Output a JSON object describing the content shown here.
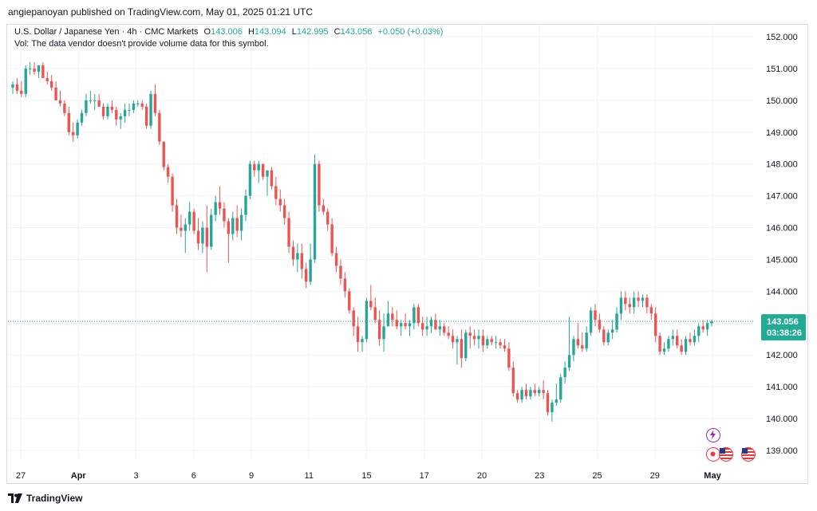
{
  "header": {
    "publish_line": "angiepanoyan published on TradingView.com, May 01, 2025 01:21 UTC"
  },
  "legend": {
    "symbol": "U.S. Dollar / Japanese Yen · 4h · CMC Markets",
    "o_label": "O",
    "o_value": "143.006",
    "h_label": "H",
    "h_value": "143.094",
    "l_label": "L",
    "l_value": "142.995",
    "c_label": "C",
    "c_value": "143.056",
    "change": "+0.050 (+0.03%)",
    "volume_note": "Vol: The data vendor doesn't provide volume data for this symbol."
  },
  "footer": {
    "brand": "TradingView"
  },
  "colors": {
    "up": "#26a69a",
    "down": "#ef5350",
    "grid": "#f0f3fa",
    "last_price": "#22ab94"
  },
  "icons": [
    "lightning-icon",
    "red-dot-event-icon",
    "us-flag-event-icon",
    "us-flag-event-icon"
  ],
  "chart_data": {
    "type": "candlestick",
    "title": "U.S. Dollar / Japanese Yen · 4h · CMC Markets",
    "ylim": [
      138.7,
      152.4
    ],
    "y_ticks": [
      "152.000",
      "151.000",
      "150.000",
      "149.000",
      "148.000",
      "147.000",
      "146.000",
      "145.000",
      "144.000",
      "143.000",
      "142.000",
      "141.000",
      "140.000",
      "139.000"
    ],
    "x_ticks": [
      "27",
      "Apr",
      "3",
      "6",
      "9",
      "11",
      "15",
      "17",
      "20",
      "23",
      "25",
      "29",
      "May"
    ],
    "last_price": {
      "value": 143.056,
      "label": "143.056",
      "countdown": "03:38:26"
    },
    "candles": [
      [
        150.4,
        150.6,
        150.2,
        150.5
      ],
      [
        150.5,
        150.7,
        150.2,
        150.3
      ],
      [
        150.3,
        150.6,
        150.1,
        150.2
      ],
      [
        150.2,
        151.1,
        150.1,
        151.0
      ],
      [
        151.0,
        151.2,
        150.8,
        151.0
      ],
      [
        151.0,
        151.2,
        150.8,
        150.9
      ],
      [
        150.9,
        151.1,
        150.7,
        151.1
      ],
      [
        151.1,
        151.2,
        150.7,
        150.7
      ],
      [
        150.7,
        150.9,
        150.5,
        150.6
      ],
      [
        150.6,
        150.8,
        150.3,
        150.4
      ],
      [
        150.4,
        150.6,
        150.0,
        150.0
      ],
      [
        150.0,
        150.3,
        149.8,
        149.9
      ],
      [
        149.9,
        150.0,
        149.5,
        149.6
      ],
      [
        149.6,
        149.8,
        148.9,
        149.0
      ],
      [
        149.0,
        149.3,
        148.7,
        148.9
      ],
      [
        148.9,
        149.4,
        148.8,
        149.3
      ],
      [
        149.3,
        149.7,
        149.2,
        149.6
      ],
      [
        149.6,
        150.2,
        149.5,
        150.0
      ],
      [
        150.0,
        150.3,
        149.9,
        150.0
      ],
      [
        150.0,
        150.2,
        149.7,
        150.0
      ],
      [
        150.0,
        150.2,
        149.8,
        149.8
      ],
      [
        149.8,
        149.9,
        149.4,
        149.5
      ],
      [
        149.5,
        149.9,
        149.4,
        149.8
      ],
      [
        149.8,
        150.0,
        149.6,
        149.7
      ],
      [
        149.7,
        149.8,
        149.2,
        149.4
      ],
      [
        149.4,
        149.6,
        149.1,
        149.5
      ],
      [
        149.5,
        149.9,
        149.3,
        149.7
      ],
      [
        149.7,
        149.9,
        149.5,
        149.7
      ],
      [
        149.7,
        150.0,
        149.6,
        149.9
      ],
      [
        149.9,
        150.0,
        149.8,
        149.9
      ],
      [
        149.9,
        150.0,
        149.7,
        149.8
      ],
      [
        149.8,
        149.9,
        149.1,
        149.2
      ],
      [
        149.2,
        150.3,
        149.1,
        150.2
      ],
      [
        150.2,
        150.5,
        149.5,
        149.6
      ],
      [
        149.6,
        149.7,
        148.6,
        148.7
      ],
      [
        148.7,
        148.7,
        147.8,
        147.9
      ],
      [
        147.9,
        148.0,
        147.4,
        147.6
      ],
      [
        147.6,
        147.7,
        146.5,
        146.7
      ],
      [
        146.7,
        146.9,
        145.8,
        146.0
      ],
      [
        146.0,
        146.4,
        145.7,
        145.9
      ],
      [
        145.9,
        146.3,
        145.2,
        146.1
      ],
      [
        146.1,
        146.8,
        145.9,
        146.5
      ],
      [
        146.5,
        146.6,
        145.8,
        145.9
      ],
      [
        145.9,
        146.3,
        145.3,
        145.5
      ],
      [
        145.5,
        146.2,
        145.2,
        146.0
      ],
      [
        146.0,
        146.7,
        144.6,
        145.4
      ],
      [
        145.4,
        146.6,
        145.3,
        146.4
      ],
      [
        146.4,
        147.0,
        146.2,
        146.8
      ],
      [
        146.8,
        147.3,
        146.4,
        146.6
      ],
      [
        146.6,
        146.8,
        146.0,
        146.2
      ],
      [
        146.2,
        146.3,
        144.9,
        145.8
      ],
      [
        145.8,
        146.5,
        145.6,
        146.3
      ],
      [
        146.3,
        146.7,
        145.7,
        145.9
      ],
      [
        145.9,
        146.6,
        145.6,
        146.4
      ],
      [
        146.4,
        147.2,
        146.2,
        147.0
      ],
      [
        147.0,
        148.1,
        146.9,
        148.0
      ],
      [
        148.0,
        148.1,
        147.6,
        147.8
      ],
      [
        147.8,
        148.1,
        147.4,
        148.0
      ],
      [
        148.0,
        148.0,
        147.5,
        147.6
      ],
      [
        147.6,
        147.8,
        147.0,
        147.8
      ],
      [
        147.8,
        147.9,
        147.2,
        147.3
      ],
      [
        147.3,
        147.6,
        146.7,
        146.9
      ],
      [
        146.9,
        147.2,
        146.5,
        146.7
      ],
      [
        146.7,
        146.9,
        146.1,
        146.3
      ],
      [
        146.3,
        146.5,
        145.2,
        145.4
      ],
      [
        145.4,
        145.6,
        144.8,
        145.0
      ],
      [
        145.0,
        145.5,
        144.6,
        145.2
      ],
      [
        145.2,
        145.5,
        144.4,
        144.7
      ],
      [
        144.7,
        144.9,
        144.1,
        144.3
      ],
      [
        144.3,
        145.5,
        144.2,
        145.0
      ],
      [
        145.0,
        148.3,
        144.9,
        148.0
      ],
      [
        148.0,
        148.1,
        146.5,
        146.7
      ],
      [
        146.7,
        146.9,
        146.4,
        146.5
      ],
      [
        146.5,
        146.6,
        145.9,
        146.1
      ],
      [
        146.1,
        146.3,
        145.1,
        145.2
      ],
      [
        145.2,
        145.4,
        144.6,
        144.8
      ],
      [
        144.8,
        145.0,
        144.2,
        144.4
      ],
      [
        144.4,
        144.6,
        143.8,
        144.0
      ],
      [
        144.0,
        144.1,
        143.3,
        143.4
      ],
      [
        143.4,
        143.5,
        142.6,
        142.9
      ],
      [
        142.9,
        143.2,
        142.1,
        142.4
      ],
      [
        142.4,
        142.6,
        142.1,
        142.5
      ],
      [
        142.5,
        143.8,
        142.4,
        143.7
      ],
      [
        143.7,
        144.2,
        143.4,
        143.5
      ],
      [
        143.5,
        143.8,
        143.0,
        143.1
      ],
      [
        143.1,
        143.4,
        142.3,
        142.5
      ],
      [
        142.5,
        143.3,
        142.1,
        142.9
      ],
      [
        142.9,
        143.7,
        142.9,
        143.3
      ],
      [
        143.3,
        143.5,
        142.9,
        143.1
      ],
      [
        143.1,
        143.4,
        142.8,
        142.9
      ],
      [
        142.9,
        143.1,
        142.6,
        143.0
      ],
      [
        143.0,
        143.3,
        142.8,
        142.9
      ],
      [
        142.9,
        143.1,
        142.6,
        143.0
      ],
      [
        143.0,
        143.6,
        142.8,
        143.5
      ],
      [
        143.5,
        143.6,
        142.9,
        143.0
      ],
      [
        143.0,
        143.2,
        142.6,
        142.8
      ],
      [
        142.8,
        143.2,
        142.6,
        142.9
      ],
      [
        142.9,
        143.2,
        142.7,
        143.1
      ],
      [
        143.1,
        143.3,
        142.8,
        142.8
      ],
      [
        142.8,
        143.1,
        142.6,
        142.9
      ],
      [
        142.9,
        143.0,
        142.6,
        142.7
      ],
      [
        142.7,
        142.9,
        142.5,
        142.6
      ],
      [
        142.6,
        142.8,
        142.2,
        142.4
      ],
      [
        142.4,
        142.6,
        141.7,
        142.5
      ],
      [
        142.5,
        142.8,
        141.6,
        141.9
      ],
      [
        141.9,
        142.8,
        141.8,
        142.7
      ],
      [
        142.7,
        142.9,
        142.2,
        142.6
      ],
      [
        142.6,
        142.8,
        142.3,
        142.5
      ],
      [
        142.5,
        142.8,
        142.2,
        142.6
      ],
      [
        142.6,
        142.8,
        142.1,
        142.3
      ],
      [
        142.3,
        142.6,
        142.2,
        142.5
      ],
      [
        142.5,
        142.6,
        142.3,
        142.4
      ],
      [
        142.4,
        142.6,
        142.2,
        142.4
      ],
      [
        142.4,
        142.5,
        142.2,
        142.3
      ],
      [
        142.3,
        142.5,
        142.1,
        142.2
      ],
      [
        142.2,
        142.4,
        141.5,
        141.6
      ],
      [
        141.6,
        141.8,
        140.7,
        140.8
      ],
      [
        140.8,
        140.9,
        140.5,
        140.6
      ],
      [
        140.6,
        141.0,
        140.5,
        140.9
      ],
      [
        140.9,
        141.1,
        140.6,
        140.7
      ],
      [
        140.7,
        141.0,
        140.6,
        140.9
      ],
      [
        140.9,
        141.1,
        140.7,
        140.8
      ],
      [
        140.8,
        141.0,
        140.7,
        140.9
      ],
      [
        140.9,
        141.2,
        140.6,
        140.8
      ],
      [
        140.8,
        140.9,
        140.1,
        140.2
      ],
      [
        140.2,
        140.6,
        139.9,
        140.5
      ],
      [
        140.5,
        141.1,
        140.4,
        140.6
      ],
      [
        140.6,
        141.4,
        140.5,
        141.3
      ],
      [
        141.3,
        141.8,
        141.1,
        141.6
      ],
      [
        141.6,
        143.2,
        141.5,
        142.0
      ],
      [
        142.0,
        142.6,
        141.8,
        142.5
      ],
      [
        142.5,
        143.0,
        142.2,
        142.3
      ],
      [
        142.3,
        142.7,
        142.1,
        142.2
      ],
      [
        142.2,
        142.9,
        142.1,
        142.7
      ],
      [
        142.7,
        143.5,
        142.6,
        143.4
      ],
      [
        143.4,
        143.6,
        142.9,
        143.1
      ],
      [
        143.1,
        143.3,
        142.7,
        142.8
      ],
      [
        142.8,
        142.9,
        142.3,
        142.4
      ],
      [
        142.4,
        142.8,
        142.3,
        142.7
      ],
      [
        142.7,
        143.1,
        142.5,
        142.8
      ],
      [
        142.8,
        143.5,
        142.7,
        143.3
      ],
      [
        143.3,
        144.0,
        143.1,
        143.8
      ],
      [
        143.8,
        144.0,
        143.4,
        143.6
      ],
      [
        143.6,
        143.8,
        143.3,
        143.5
      ],
      [
        143.5,
        144.0,
        143.3,
        143.8
      ],
      [
        143.8,
        144.0,
        143.5,
        143.7
      ],
      [
        143.7,
        143.9,
        143.5,
        143.8
      ],
      [
        143.8,
        143.9,
        143.3,
        143.5
      ],
      [
        143.5,
        143.6,
        143.1,
        143.3
      ],
      [
        143.3,
        143.5,
        142.4,
        142.6
      ],
      [
        142.6,
        142.7,
        142.0,
        142.1
      ],
      [
        142.1,
        142.4,
        142.0,
        142.2
      ],
      [
        142.2,
        142.6,
        142.1,
        142.5
      ],
      [
        142.5,
        142.8,
        142.3,
        142.6
      ],
      [
        142.6,
        142.8,
        142.2,
        142.3
      ],
      [
        142.3,
        142.5,
        142.0,
        142.1
      ],
      [
        142.1,
        142.6,
        142.0,
        142.5
      ],
      [
        142.5,
        142.7,
        142.3,
        142.4
      ],
      [
        142.4,
        142.8,
        142.3,
        142.6
      ],
      [
        142.6,
        143.0,
        142.4,
        142.9
      ],
      [
        142.9,
        143.1,
        142.7,
        142.8
      ],
      [
        142.8,
        143.1,
        142.6,
        143.0
      ],
      [
        143.0,
        143.1,
        142.9,
        143.06
      ]
    ]
  }
}
